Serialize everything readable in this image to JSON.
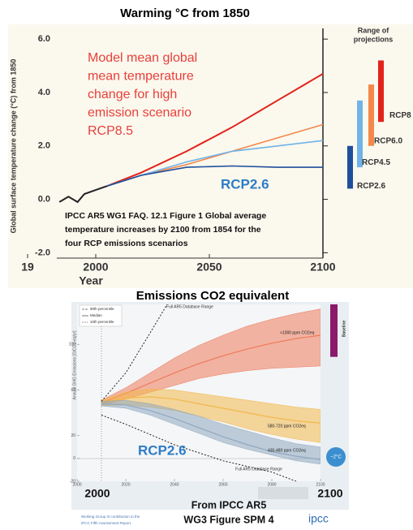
{
  "chart_data": [
    {
      "type": "line",
      "title": "Warming °C from 1850",
      "y_label": "Global surface temperature change (°C) from 1850",
      "x_label": "Year",
      "xlim": [
        1970,
        2100
      ],
      "xticks": [
        {
          "value": 1970,
          "label": "19"
        },
        2000,
        2050,
        2100
      ],
      "ylim": [
        -2.2,
        6.4
      ],
      "yticks": [
        {
          "value": -2,
          "label": "-2.0"
        },
        {
          "value": 0,
          "label": "0.0"
        },
        {
          "value": 2,
          "label": "2.0"
        },
        {
          "value": 4,
          "label": "4.0"
        },
        {
          "value": 6,
          "label": "6.0"
        }
      ],
      "historical": {
        "color": "#222222",
        "x": [
          1984,
          1988,
          1990,
          1992,
          1995,
          2000,
          2005
        ],
        "values": [
          -0.1,
          0.1,
          0.0,
          -0.1,
          0.2,
          0.35,
          0.5
        ]
      },
      "series": [
        {
          "name": "RCP8",
          "color": "#e2231a",
          "x": [
            2005,
            2020,
            2040,
            2060,
            2080,
            2100
          ],
          "values": [
            0.5,
            1.0,
            1.8,
            2.7,
            3.7,
            4.7
          ],
          "range": [
            2.9,
            5.2
          ]
        },
        {
          "name": "RCP6.0",
          "color": "#f4884a",
          "x": [
            2005,
            2020,
            2040,
            2060,
            2080,
            2100
          ],
          "values": [
            0.5,
            0.9,
            1.3,
            1.8,
            2.3,
            2.8
          ],
          "range": [
            2.0,
            4.3
          ]
        },
        {
          "name": "RCP4.5",
          "color": "#6fb3e8",
          "x": [
            2005,
            2020,
            2040,
            2060,
            2080,
            2100
          ],
          "values": [
            0.5,
            0.9,
            1.4,
            1.8,
            2.0,
            2.2
          ],
          "range": [
            1.2,
            3.7
          ]
        },
        {
          "name": "RCP2.6",
          "color": "#1f4e9c",
          "x": [
            2005,
            2020,
            2040,
            2060,
            2080,
            2100
          ],
          "values": [
            0.5,
            0.9,
            1.2,
            1.25,
            1.2,
            1.2
          ],
          "range": [
            0.4,
            2.0
          ]
        }
      ],
      "range_title": [
        "Range of",
        "projections"
      ],
      "annotation_lines": [
        "Model mean global",
        "mean temperature",
        "change for high",
        "emission scenario",
        "RCP8.5"
      ],
      "highlight_label": "RCP2.6",
      "caption_lines": [
        "IPCC AR5 WG1 FAQ. 12.1 Figure 1 Global average",
        "temperature increases by 2100 from 1854 for the",
        "four RCP emissions scenarios"
      ]
    },
    {
      "type": "area",
      "title": "Emissions CO2 equivalent",
      "y_label": "Annual GHG Emissions [GtCO2-eq/yr]",
      "xlim": [
        2000,
        2100
      ],
      "xticks": [
        2000,
        2020,
        2040,
        2060,
        2080,
        2100
      ],
      "ylim": [
        -20,
        135
      ],
      "yticks": [
        -20,
        0,
        20,
        60,
        100
      ],
      "legend": [
        "90th percentile",
        "Median",
        "10th percentile"
      ],
      "series": [
        {
          "name": ">1000 ppm CO2eq",
          "color": "#ee7a5a",
          "x": [
            2010,
            2020,
            2030,
            2040,
            2050,
            2060,
            2070,
            2080,
            2090,
            2100
          ],
          "low": [
            47,
            52,
            58,
            64,
            70,
            74,
            77,
            79,
            80,
            81
          ],
          "values": [
            49,
            57,
            66,
            75,
            83,
            90,
            96,
            101,
            105,
            108
          ],
          "high": [
            51,
            62,
            75,
            88,
            99,
            108,
            116,
            122,
            127,
            131
          ]
        },
        {
          "name": "580-720 ppm CO2eq",
          "color": "#f2b84a",
          "x": [
            2010,
            2020,
            2030,
            2040,
            2050,
            2060,
            2070,
            2080,
            2090,
            2100
          ],
          "low": [
            46,
            47,
            45,
            42,
            37,
            32,
            26,
            21,
            17,
            14
          ],
          "values": [
            49,
            53,
            54,
            52,
            48,
            44,
            40,
            36,
            33,
            31
          ],
          "high": [
            51,
            58,
            61,
            60,
            57,
            54,
            51,
            48,
            45,
            43
          ]
        },
        {
          "name": "430-480 ppm CO2eq",
          "color": "#8fa8c0",
          "x": [
            2010,
            2020,
            2030,
            2040,
            2050,
            2060,
            2070,
            2080,
            2090,
            2100
          ],
          "low": [
            46,
            44,
            38,
            30,
            22,
            14,
            8,
            3,
            -2,
            -5
          ],
          "values": [
            48,
            47,
            42,
            35,
            27,
            19,
            12,
            6,
            2,
            -1
          ],
          "high": [
            50,
            51,
            48,
            43,
            37,
            30,
            24,
            18,
            13,
            10
          ]
        }
      ],
      "database_range": {
        "name": "Full AR5 Database Range",
        "upper": {
          "x": [
            2010,
            2020,
            2030,
            2037
          ],
          "values": [
            50,
            75,
            110,
            135
          ]
        },
        "lower": {
          "x": [
            2010,
            2020,
            2040,
            2060,
            2080,
            2090
          ],
          "values": [
            38,
            30,
            12,
            -2,
            -12,
            -20
          ]
        }
      },
      "baseline": {
        "name": "Baseline",
        "color": "#8b1a6b",
        "range": [
          89,
          135
        ]
      },
      "target_label": "~2°C",
      "highlight_label": "RCP2.6",
      "source_lines": [
        "From IPCC AR5",
        "WG3 Figure SPM 4"
      ],
      "footer_lines": [
        "Working Group III contribution to the",
        "IPCC Fifth Assessment Report"
      ],
      "logo": "ipcc"
    }
  ]
}
